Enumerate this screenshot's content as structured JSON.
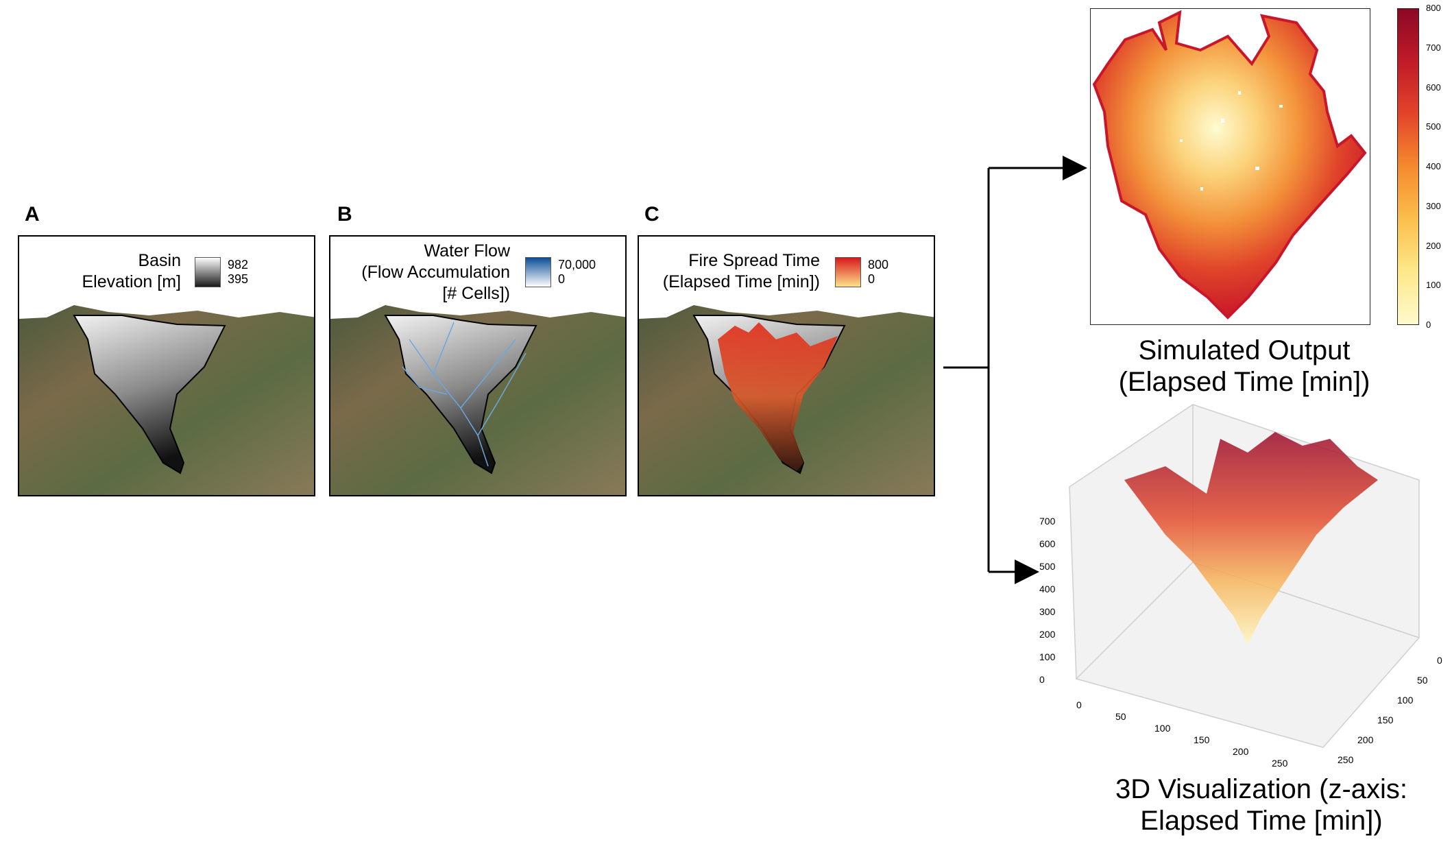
{
  "panels": [
    {
      "letter": "A",
      "title_lines": [
        "Basin",
        "Elevation [m]"
      ],
      "cbar_max": "982",
      "cbar_min": "395",
      "colors": [
        "#ffffff",
        "#1a1a1a"
      ]
    },
    {
      "letter": "B",
      "title_lines": [
        "Water Flow",
        "(Flow Accumulation",
        "[# Cells])"
      ],
      "cbar_max": "70,000",
      "cbar_min": "0",
      "colors": [
        "#0b4f96",
        "#ffffff"
      ]
    },
    {
      "letter": "C",
      "title_lines": [
        "Fire Spread Time",
        "(Elapsed Time [min])"
      ],
      "cbar_max": "800",
      "cbar_min": "0",
      "colors": [
        "#d7191c",
        "#fee08b"
      ]
    }
  ],
  "simulated": {
    "title_lines": [
      "Simulated Output",
      "(Elapsed Time [min])"
    ],
    "colorbar_ticks": [
      "800",
      "700",
      "600",
      "500",
      "400",
      "300",
      "200",
      "100",
      "0"
    ]
  },
  "viz3d": {
    "title_lines": [
      "3D Visualization (z-axis:",
      "Elapsed Time [min])"
    ],
    "z_ticks": [
      "700",
      "600",
      "500",
      "400",
      "300",
      "200",
      "100",
      "0"
    ],
    "x_ticks": [
      "0",
      "50",
      "100",
      "150",
      "200",
      "250"
    ],
    "y_ticks": [
      "0",
      "50",
      "100",
      "150",
      "200",
      "250"
    ]
  },
  "colors": {
    "fire_low": "#fffacc",
    "fire_high": "#8c0825",
    "arrow": "#000000"
  }
}
